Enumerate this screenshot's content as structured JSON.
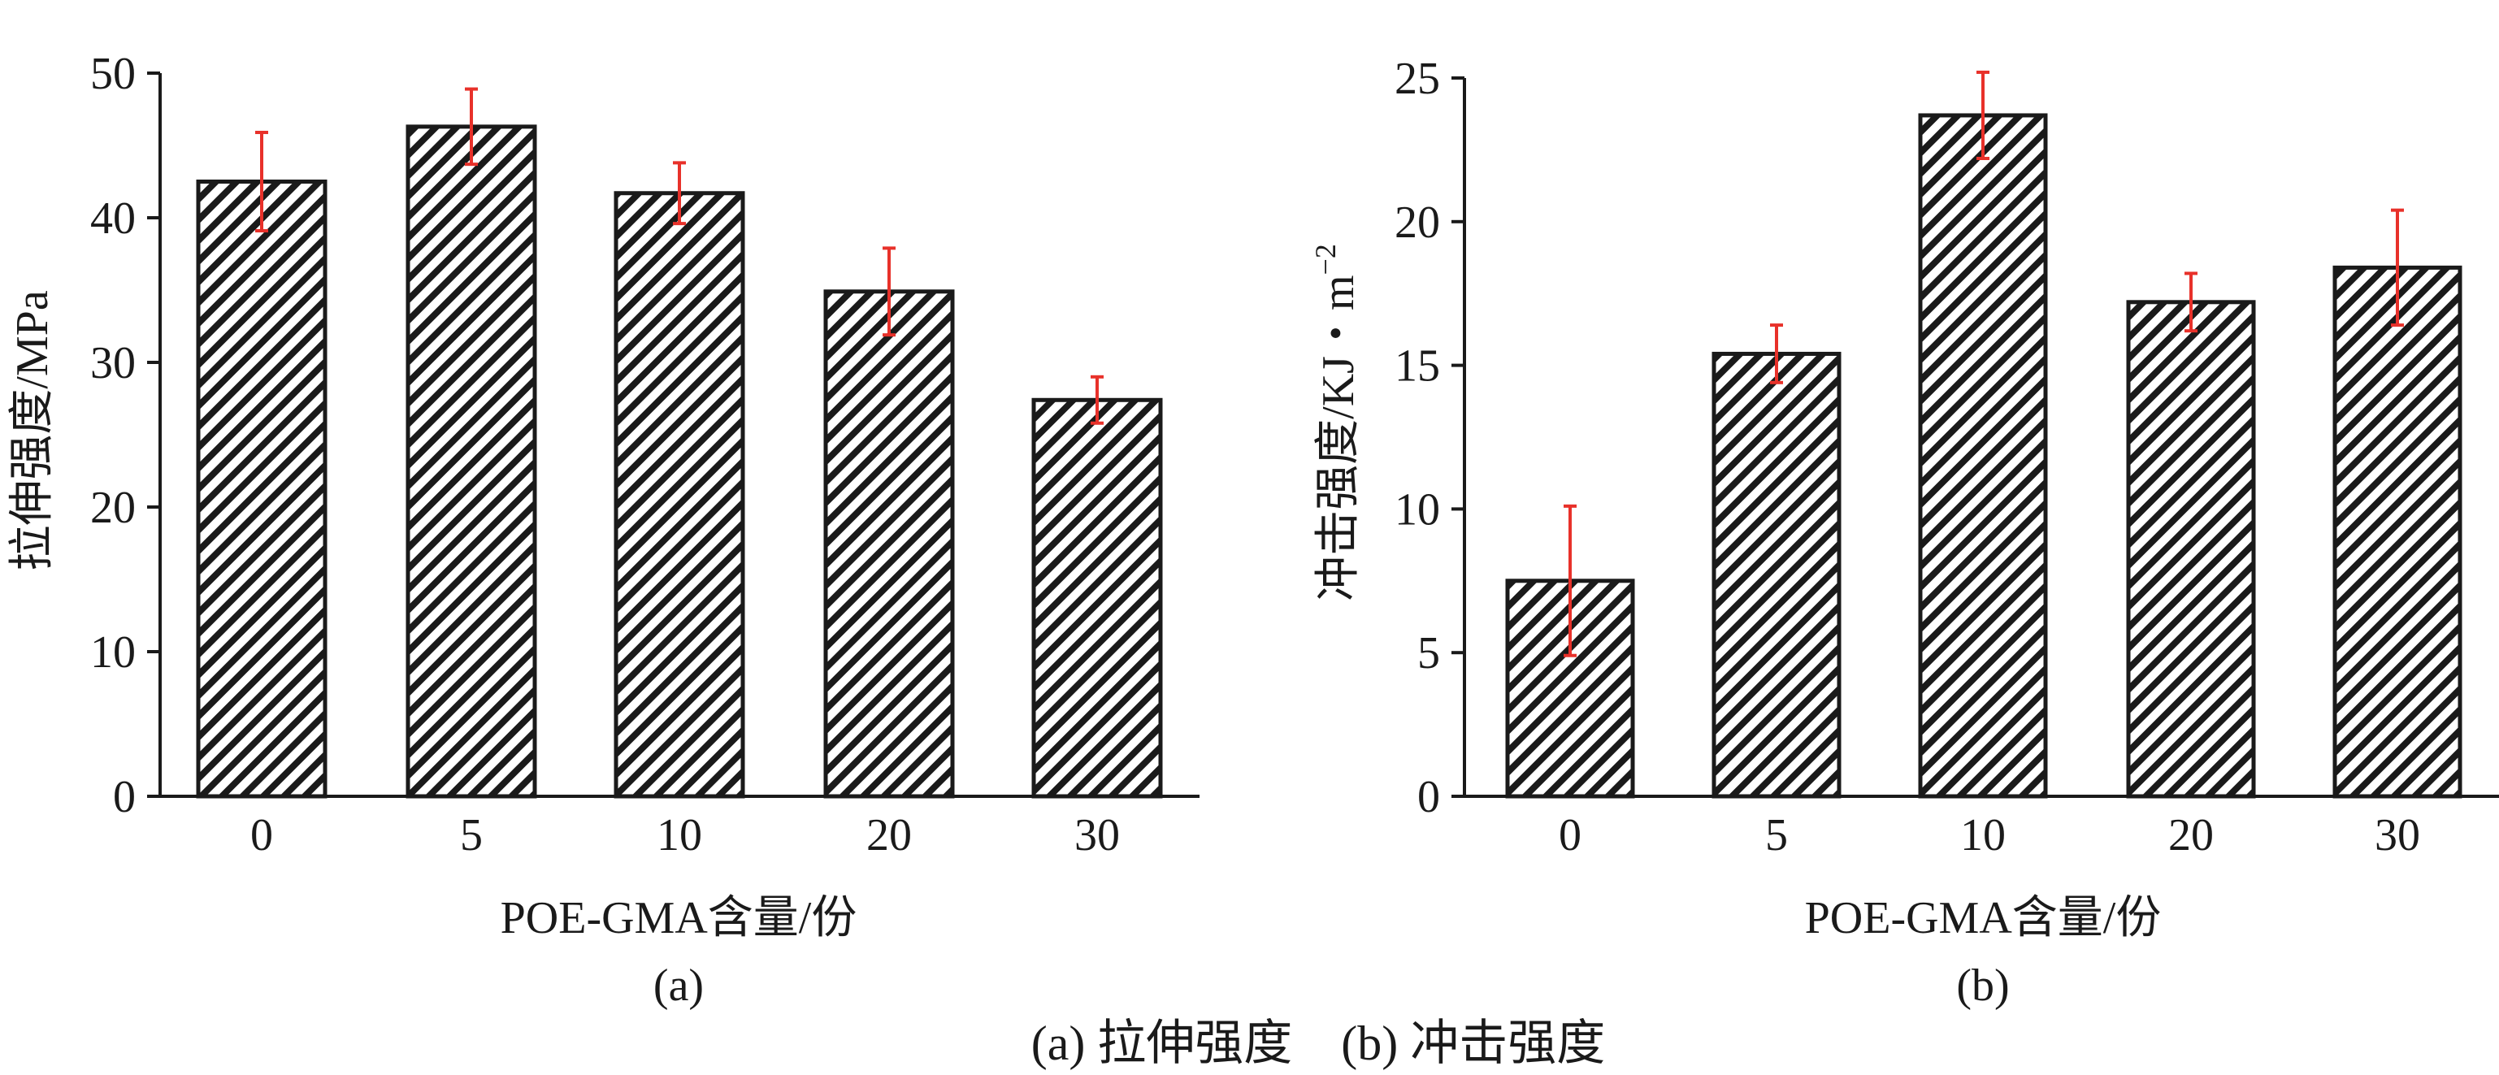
{
  "chart_data": [
    {
      "type": "bar",
      "panel_label": "(a)",
      "categories": [
        "0",
        "5",
        "10",
        "20",
        "30"
      ],
      "values": [
        42.5,
        46.3,
        41.7,
        34.9,
        27.4
      ],
      "error": [
        3.4,
        2.6,
        2.1,
        3.0,
        1.6
      ],
      "xlabel": "POE-GMA含量/份",
      "ylabel": "拉伸强度/MPa",
      "ylim": [
        0,
        50
      ],
      "yticks": [
        "0",
        "10",
        "20",
        "30",
        "40",
        "50"
      ],
      "grid": false
    },
    {
      "type": "bar",
      "panel_label": "(b)",
      "categories": [
        "0",
        "5",
        "10",
        "20",
        "30"
      ],
      "values": [
        7.5,
        15.4,
        23.7,
        17.2,
        18.4
      ],
      "error": [
        2.6,
        1.0,
        1.5,
        1.0,
        2.0
      ],
      "xlabel": "POE-GMA含量/份",
      "ylabel": "冲击强度/KJ・m",
      "ylabel_sup": "−2",
      "ylim": [
        0,
        25
      ],
      "yticks": [
        "0",
        "5",
        "10",
        "15",
        "20",
        "25"
      ],
      "grid": false
    }
  ],
  "caption": "(a) 拉伸强度　(b) 冲击强度",
  "colors": {
    "bar_fill": "#ffffff",
    "bar_hatch": "#1a1a1a",
    "bar_border": "#1a1a1a",
    "error_bar": "#e8312a",
    "axis": "#1a1a1a"
  }
}
